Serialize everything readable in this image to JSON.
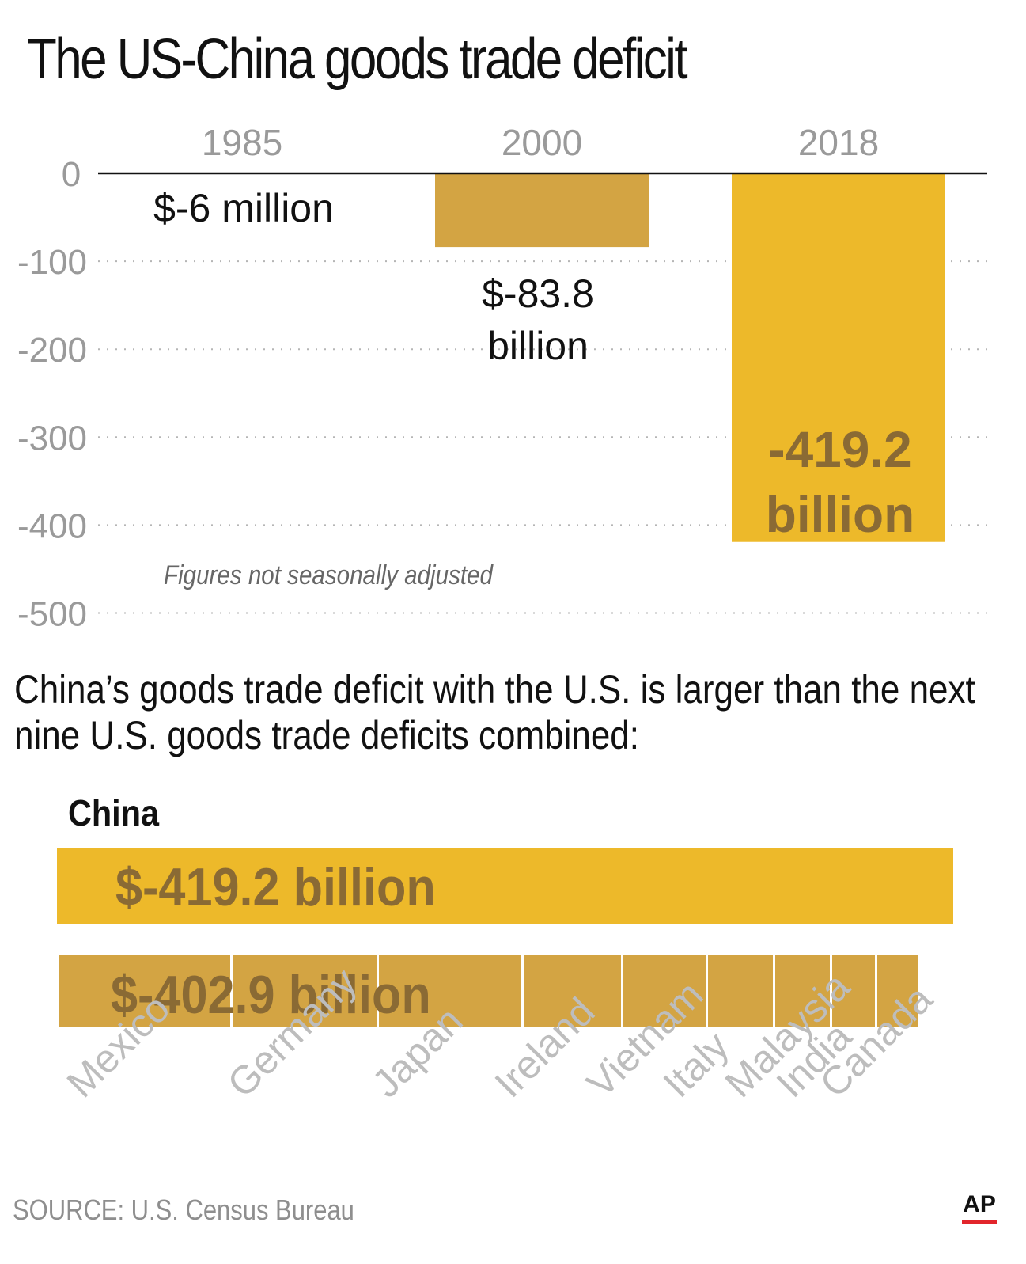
{
  "title": "The US-China goods trade deficit",
  "subtitle": "China’s goods trade deficit with the U.S. is larger than the next nine U.S. goods trade deficits combined:",
  "source": "SOURCE: U.S. Census Bureau",
  "logo": "AP",
  "colors": {
    "gold": "#edb92a",
    "tan": "#d3a443",
    "label_brown": "#8a6a34",
    "grid": "#b5b5b5",
    "ap_red": "#e2252b"
  },
  "chart_data": [
    {
      "type": "bar",
      "title": "The US-China goods trade deficit",
      "categories": [
        "1985",
        "2000",
        "2018"
      ],
      "values": [
        -0.006,
        -83.8,
        -419.2
      ],
      "value_labels": [
        "$-6 million",
        "$-83.8 billion",
        "-419.2 billion"
      ],
      "yticks": [
        0,
        -100,
        -200,
        -300,
        -400,
        -500
      ],
      "ylim": [
        -500,
        0
      ],
      "grid": true,
      "note": "Figures not seasonally adjusted",
      "colors": [
        "#edb92a",
        "#d3a443",
        "#edb92a"
      ]
    },
    {
      "type": "bar",
      "title": "China’s goods trade deficit with the U.S. is larger than the next nine U.S. goods trade deficits combined:",
      "china": {
        "label": "China",
        "value": -419.2,
        "value_label": "$-419.2 billion"
      },
      "others": {
        "value_label": "$-402.9 billion",
        "total": -402.9,
        "categories": [
          "Mexico",
          "Germany",
          "Japan",
          "Ireland",
          "Vietnam",
          "Italy",
          "Malaysia",
          "India",
          "Canada"
        ],
        "values": [
          -81.5,
          -68.3,
          -67.6,
          -46.8,
          -39.5,
          -31.6,
          -26.5,
          -21.3,
          -19.8
        ]
      }
    }
  ]
}
